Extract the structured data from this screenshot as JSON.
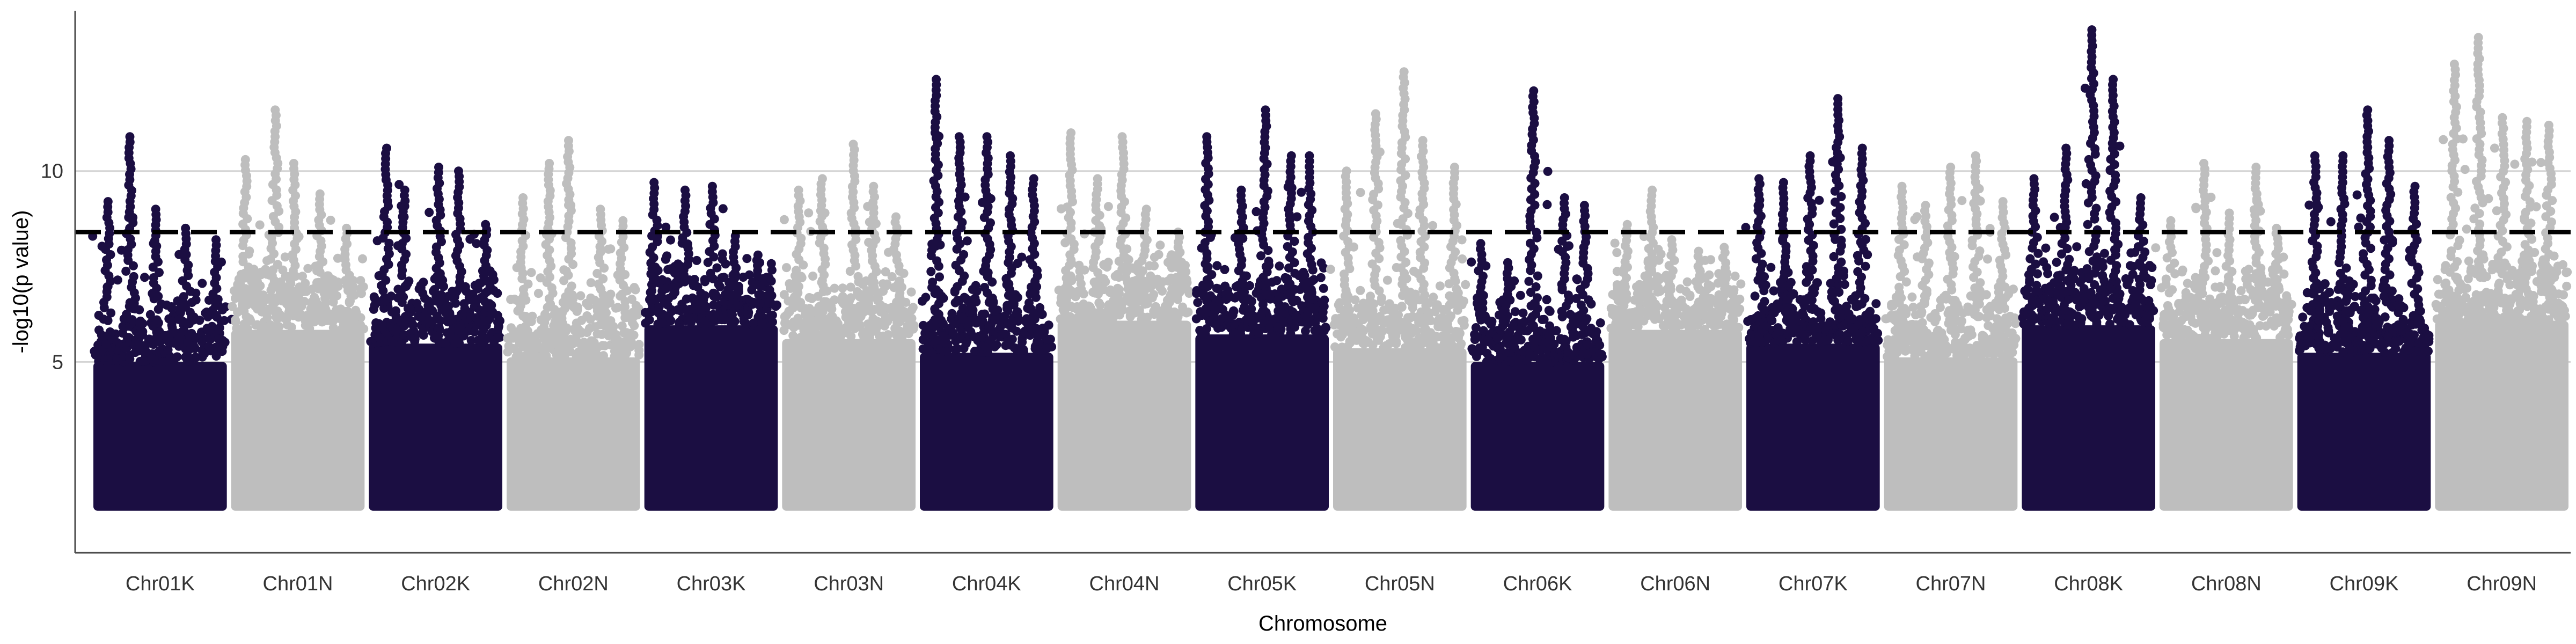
{
  "chart_data": {
    "type": "scatter",
    "subtype": "manhattan",
    "title": "",
    "xlabel": "Chromosome",
    "ylabel": "-log10(p value)",
    "ylim": [
      0,
      14.2
    ],
    "yticks": [
      5,
      10
    ],
    "grid": {
      "horizontal": true,
      "vertical": false
    },
    "threshold": {
      "value": 8.4,
      "style": "dashed",
      "color": "#000000"
    },
    "colors": {
      "odd": "#1b0e42",
      "even": "#bebebe"
    },
    "chromosomes": [
      {
        "name": "Chr01K",
        "peaks": [
          9.2,
          10.9,
          9.0,
          8.5,
          8.2
        ]
      },
      {
        "name": "Chr01N",
        "peaks": [
          10.3,
          11.6,
          10.2,
          9.4,
          8.5
        ]
      },
      {
        "name": "Chr02K",
        "peaks": [
          10.6,
          9.5,
          10.1,
          10.0,
          8.6
        ]
      },
      {
        "name": "Chr02N",
        "peaks": [
          9.3,
          10.2,
          10.8,
          9.0,
          8.7
        ]
      },
      {
        "name": "Chr03K",
        "peaks": [
          9.7,
          9.5,
          9.6,
          8.3,
          7.8
        ]
      },
      {
        "name": "Chr03N",
        "peaks": [
          9.5,
          9.8,
          10.7,
          9.6,
          8.8
        ]
      },
      {
        "name": "Chr04K",
        "peaks": [
          12.4,
          10.9,
          10.9,
          10.4,
          9.8
        ]
      },
      {
        "name": "Chr04N",
        "peaks": [
          11.0,
          9.8,
          10.9,
          9.0,
          8.4
        ]
      },
      {
        "name": "Chr05K",
        "peaks": [
          10.9,
          9.5,
          11.6,
          10.4,
          10.4
        ]
      },
      {
        "name": "Chr05N",
        "peaks": [
          10.0,
          11.5,
          12.6,
          10.8,
          10.1
        ]
      },
      {
        "name": "Chr06K",
        "peaks": [
          8.1,
          7.6,
          12.1,
          9.3,
          9.1
        ]
      },
      {
        "name": "Chr06N",
        "peaks": [
          8.6,
          9.5,
          8.2,
          7.9,
          8.0
        ]
      },
      {
        "name": "Chr07K",
        "peaks": [
          9.8,
          9.7,
          10.4,
          11.9,
          10.6
        ]
      },
      {
        "name": "Chr07N",
        "peaks": [
          9.6,
          9.1,
          10.1,
          10.4,
          9.2
        ]
      },
      {
        "name": "Chr08K",
        "peaks": [
          9.8,
          10.6,
          13.7,
          12.4,
          9.3
        ]
      },
      {
        "name": "Chr08N",
        "peaks": [
          8.7,
          10.2,
          8.9,
          10.1,
          8.5
        ]
      },
      {
        "name": "Chr09K",
        "peaks": [
          10.4,
          10.4,
          11.6,
          10.8,
          9.6
        ]
      },
      {
        "name": "Chr09N",
        "peaks": [
          12.8,
          13.5,
          11.4,
          11.3,
          11.2
        ]
      }
    ]
  }
}
